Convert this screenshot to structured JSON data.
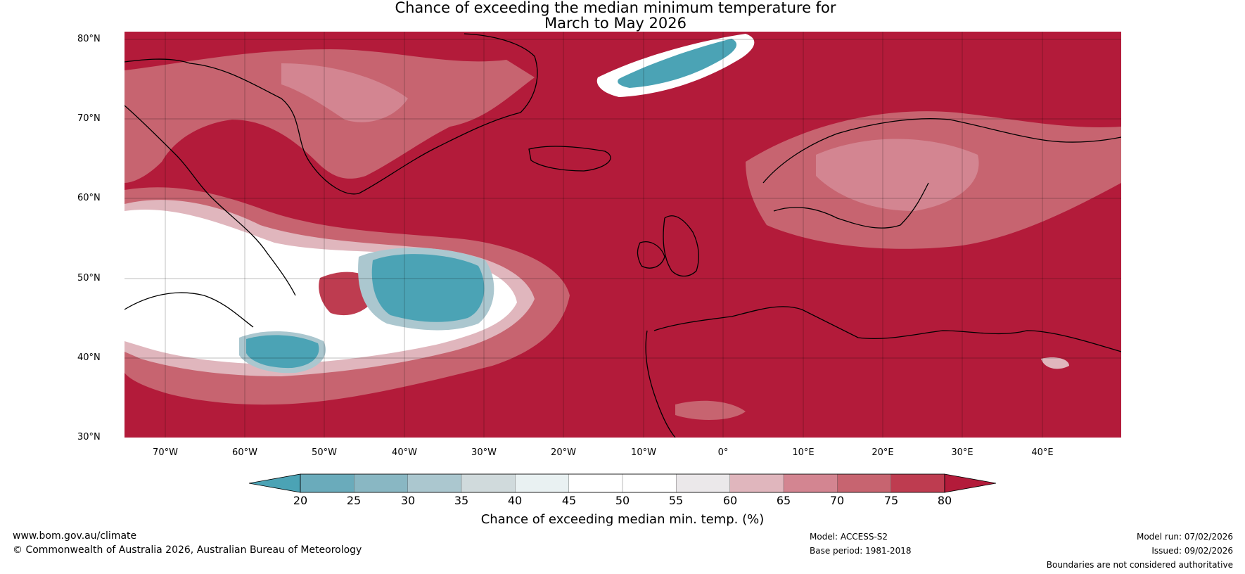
{
  "title": {
    "line1": "Chance of exceeding the median minimum temperature for",
    "line2": "March to May 2026"
  },
  "map": {
    "lat_labels": [
      "80°N",
      "70°N",
      "60°N",
      "50°N",
      "40°N",
      "30°N"
    ],
    "lon_labels": [
      "70°W",
      "60°W",
      "50°W",
      "40°W",
      "30°W",
      "20°W",
      "10°W",
      "0°",
      "10°E",
      "20°E",
      "30°E",
      "40°E"
    ],
    "extent": {
      "lon_min": -75,
      "lon_max": 50,
      "lat_min": 30,
      "lat_max": 81
    },
    "regions": [
      "Greenland",
      "Iceland",
      "Scandinavia",
      "British Isles",
      "Europe",
      "North Africa",
      "Newfoundland / Labrador",
      "North Atlantic"
    ]
  },
  "colorbar": {
    "ticks": [
      "20",
      "25",
      "30",
      "35",
      "40",
      "45",
      "50",
      "55",
      "60",
      "65",
      "70",
      "75",
      "80"
    ],
    "label": "Chance of exceeding median min. temp. (%)",
    "colors": [
      "#4ba3b5",
      "#6aabbb",
      "#89b7c3",
      "#abc7cf",
      "#d0dadc",
      "#e9f1f2",
      "#ffffff",
      "#ffffff",
      "#ebe8ea",
      "#e0b6bd",
      "#d38591",
      "#c76470",
      "#be3c50",
      "#b31b3a"
    ]
  },
  "footer": {
    "website": "www.bom.gov.au/climate",
    "copyright": "© Commonwealth of Australia 2026, Australian Bureau of Meteorology",
    "model": "Model: ACCESS-S2",
    "base_period": "Base period: 1981-2018",
    "model_run": "Model run: 07/02/2026",
    "issued": "Issued: 09/02/2026",
    "disclaimer": "Boundaries are not considered authoritative"
  }
}
